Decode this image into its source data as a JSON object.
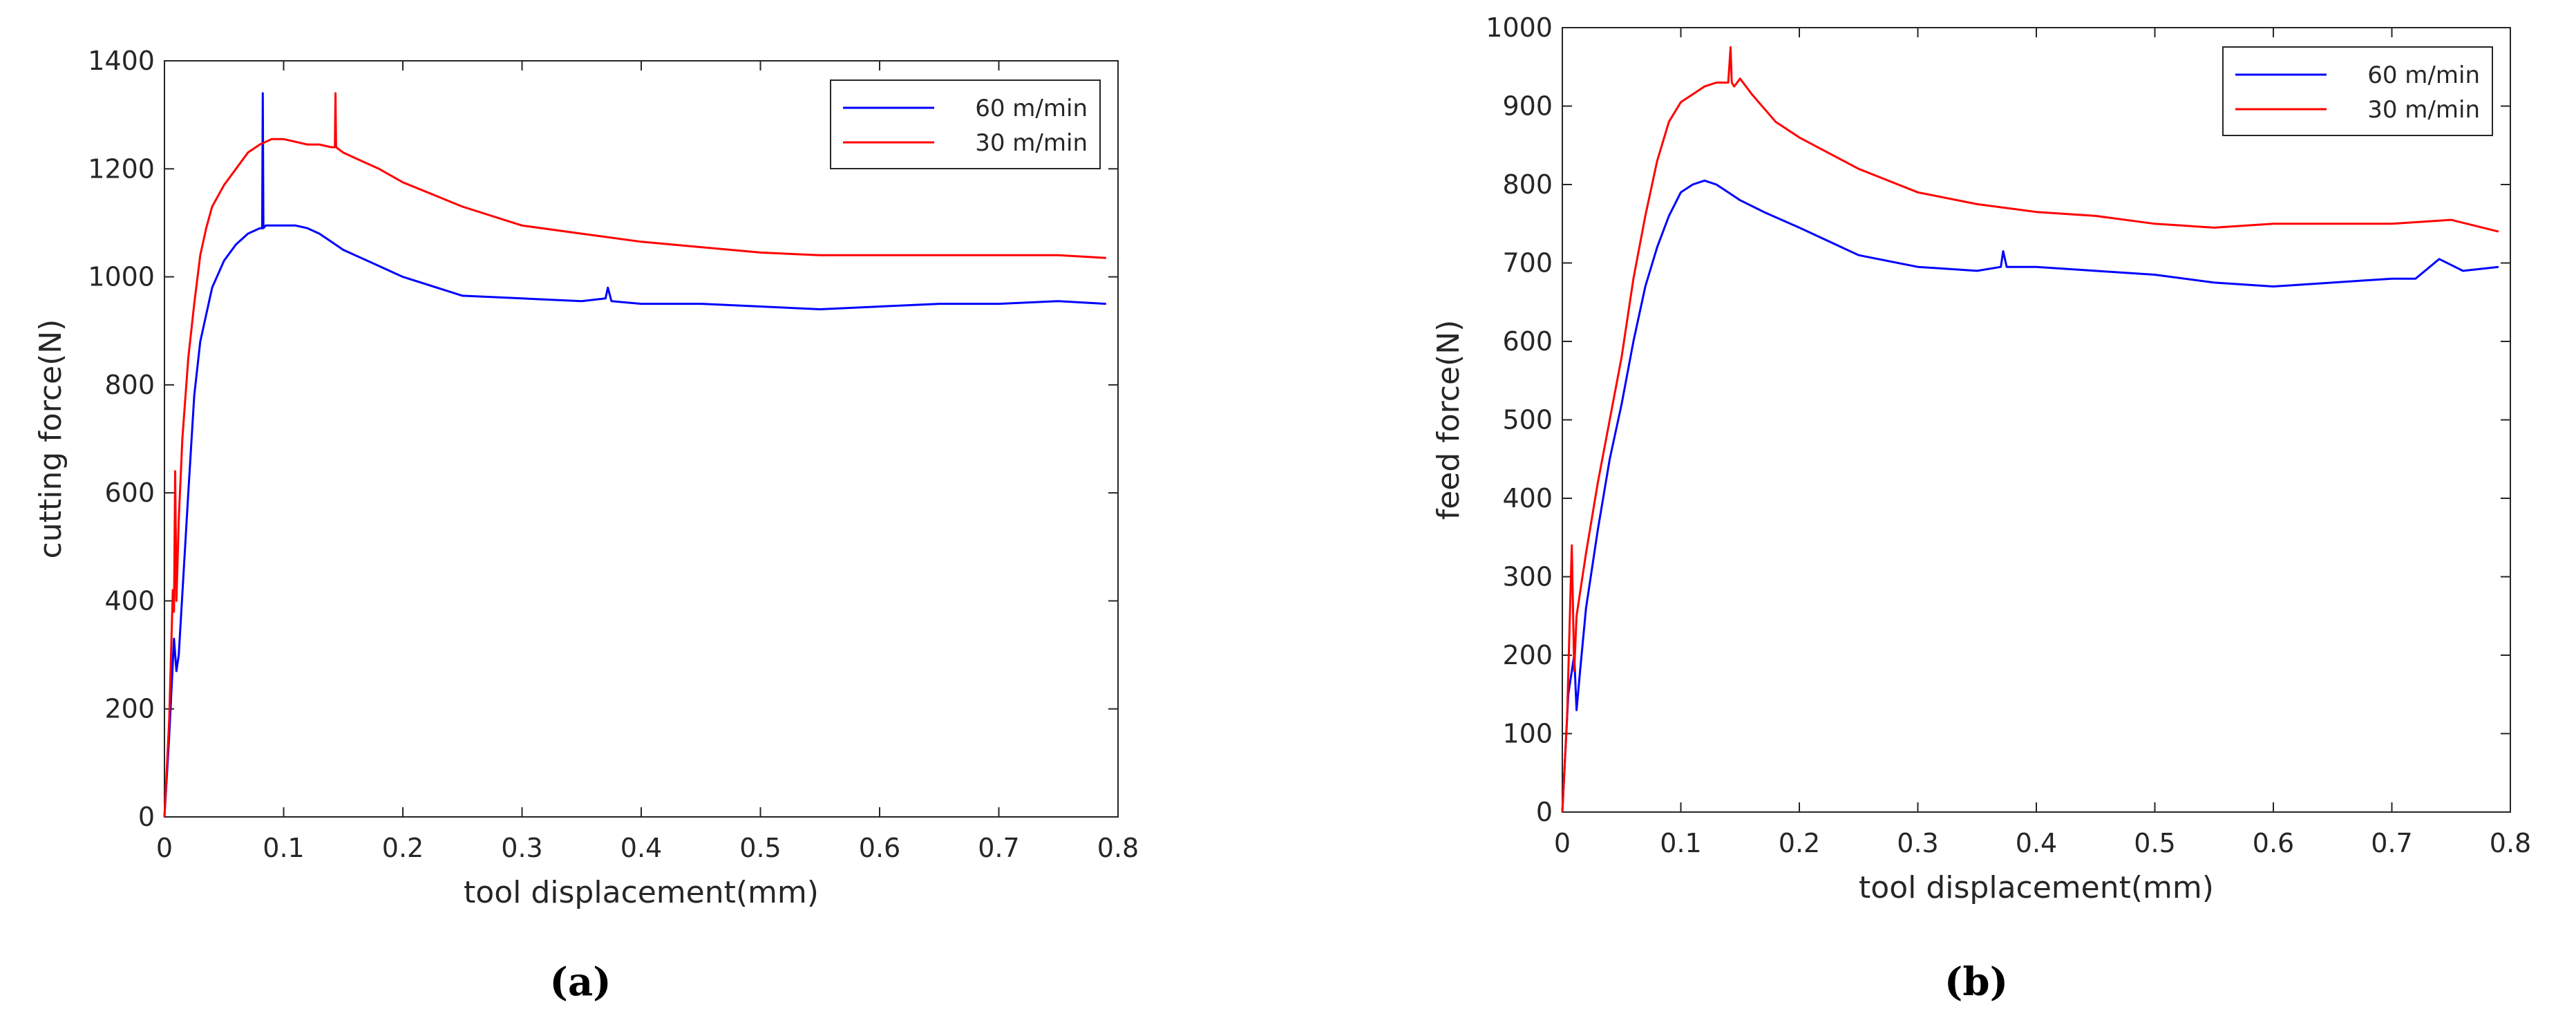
{
  "panel_labels": [
    "(a)",
    "(b)"
  ],
  "colors": {
    "series_60": "#0000ff",
    "series_30": "#ff0000",
    "axis": "#262626"
  },
  "chart_data": [
    {
      "type": "line",
      "xlabel": "tool displacement(mm)",
      "ylabel": "cutting force(N)",
      "xlim": [
        0,
        0.8
      ],
      "ylim": [
        0,
        1400
      ],
      "xticks": [
        0,
        0.1,
        0.2,
        0.3,
        0.4,
        0.5,
        0.6,
        0.7,
        0.8
      ],
      "yticks": [
        0,
        200,
        400,
        600,
        800,
        1000,
        1200,
        1400
      ],
      "grid": false,
      "legend_position": "top-right",
      "series": [
        {
          "name": "60 m/min",
          "color": "#0000ff",
          "x": [
            0,
            0.004,
            0.008,
            0.01,
            0.012,
            0.016,
            0.02,
            0.025,
            0.03,
            0.04,
            0.05,
            0.06,
            0.07,
            0.08,
            0.082,
            0.0825,
            0.083,
            0.085,
            0.09,
            0.1,
            0.11,
            0.12,
            0.13,
            0.14,
            0.15,
            0.17,
            0.2,
            0.25,
            0.3,
            0.35,
            0.37,
            0.372,
            0.375,
            0.4,
            0.45,
            0.5,
            0.55,
            0.6,
            0.65,
            0.7,
            0.75,
            0.79
          ],
          "y": [
            0,
            150,
            330,
            270,
            300,
            450,
            600,
            780,
            880,
            980,
            1030,
            1060,
            1080,
            1090,
            1090,
            1340,
            1090,
            1095,
            1095,
            1095,
            1095,
            1090,
            1080,
            1065,
            1050,
            1030,
            1000,
            965,
            960,
            955,
            960,
            980,
            955,
            950,
            950,
            945,
            940,
            945,
            950,
            950,
            955,
            950
          ]
        },
        {
          "name": "30 m/min",
          "color": "#ff0000",
          "x": [
            0,
            0.004,
            0.007,
            0.008,
            0.009,
            0.01,
            0.012,
            0.015,
            0.02,
            0.025,
            0.03,
            0.035,
            0.04,
            0.05,
            0.06,
            0.07,
            0.08,
            0.09,
            0.1,
            0.11,
            0.12,
            0.13,
            0.14,
            0.143,
            0.1435,
            0.144,
            0.15,
            0.16,
            0.18,
            0.2,
            0.25,
            0.3,
            0.35,
            0.4,
            0.45,
            0.5,
            0.55,
            0.6,
            0.65,
            0.7,
            0.75,
            0.79
          ],
          "y": [
            0,
            180,
            420,
            380,
            640,
            400,
            550,
            700,
            850,
            950,
            1040,
            1090,
            1130,
            1170,
            1200,
            1230,
            1245,
            1255,
            1255,
            1250,
            1245,
            1245,
            1240,
            1240,
            1340,
            1240,
            1230,
            1220,
            1200,
            1175,
            1130,
            1095,
            1080,
            1065,
            1055,
            1045,
            1040,
            1040,
            1040,
            1040,
            1040,
            1035
          ]
        }
      ]
    },
    {
      "type": "line",
      "xlabel": "tool displacement(mm)",
      "ylabel": "feed force(N)",
      "xlim": [
        0,
        0.8
      ],
      "ylim": [
        0,
        1000
      ],
      "xticks": [
        0,
        0.1,
        0.2,
        0.3,
        0.4,
        0.5,
        0.6,
        0.7,
        0.8
      ],
      "yticks": [
        0,
        100,
        200,
        300,
        400,
        500,
        600,
        700,
        800,
        900,
        1000
      ],
      "grid": false,
      "legend_position": "top-right",
      "series": [
        {
          "name": "60 m/min",
          "color": "#0000ff",
          "x": [
            0,
            0.005,
            0.01,
            0.012,
            0.015,
            0.02,
            0.03,
            0.04,
            0.05,
            0.06,
            0.07,
            0.08,
            0.09,
            0.1,
            0.11,
            0.12,
            0.13,
            0.14,
            0.15,
            0.17,
            0.2,
            0.25,
            0.3,
            0.35,
            0.37,
            0.372,
            0.375,
            0.4,
            0.45,
            0.5,
            0.55,
            0.6,
            0.65,
            0.7,
            0.72,
            0.74,
            0.76,
            0.79
          ],
          "y": [
            0,
            150,
            200,
            130,
            180,
            260,
            360,
            450,
            520,
            600,
            670,
            720,
            760,
            790,
            800,
            805,
            800,
            790,
            780,
            765,
            745,
            710,
            695,
            690,
            695,
            715,
            695,
            695,
            690,
            685,
            675,
            670,
            675,
            680,
            680,
            705,
            690,
            695
          ]
        },
        {
          "name": "30 m/min",
          "color": "#ff0000",
          "x": [
            0,
            0.004,
            0.008,
            0.01,
            0.012,
            0.015,
            0.02,
            0.03,
            0.04,
            0.05,
            0.06,
            0.07,
            0.08,
            0.09,
            0.1,
            0.11,
            0.12,
            0.13,
            0.14,
            0.142,
            0.143,
            0.145,
            0.15,
            0.16,
            0.18,
            0.2,
            0.25,
            0.3,
            0.35,
            0.4,
            0.45,
            0.5,
            0.55,
            0.6,
            0.65,
            0.7,
            0.75,
            0.79
          ],
          "y": [
            0,
            120,
            340,
            180,
            250,
            280,
            330,
            420,
            500,
            580,
            680,
            760,
            830,
            880,
            905,
            915,
            925,
            930,
            930,
            975,
            930,
            925,
            935,
            915,
            880,
            860,
            820,
            790,
            775,
            765,
            760,
            750,
            745,
            750,
            750,
            750,
            755,
            740
          ]
        }
      ]
    }
  ]
}
